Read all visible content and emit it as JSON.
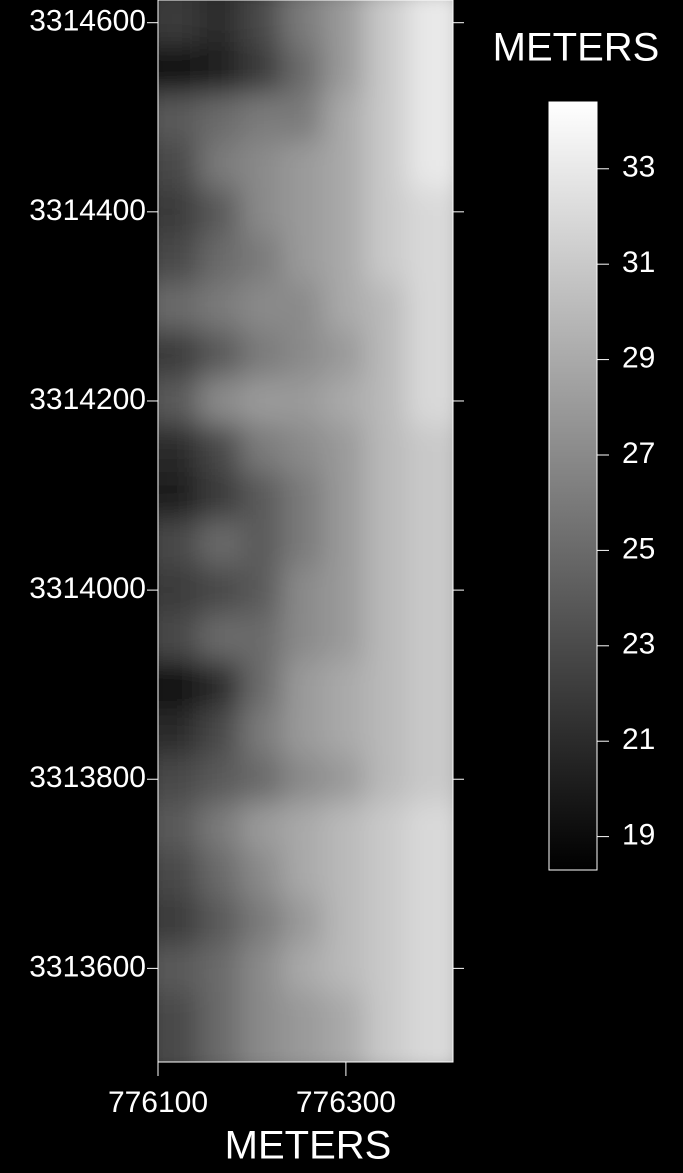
{
  "chart_data": {
    "type": "heatmap",
    "xlabel": "METERS",
    "colorbar_label": "METERS",
    "x": [
      776122,
      776166,
      776210,
      776254,
      776298,
      776342,
      776386
    ],
    "y": [
      3314600,
      3314550,
      3314500,
      3314450,
      3314400,
      3314350,
      3314300,
      3314250,
      3314200,
      3314150,
      3314100,
      3314050,
      3314000,
      3313950,
      3313900,
      3313850,
      3313800,
      3313750,
      3313700,
      3313650,
      3313600,
      3313550
    ],
    "z": [
      [
        22,
        21,
        23,
        26,
        28,
        31,
        33
      ],
      [
        19,
        20,
        22,
        25,
        28,
        31,
        33
      ],
      [
        24,
        25,
        26,
        26,
        29,
        31,
        33
      ],
      [
        23,
        26,
        27,
        28,
        29,
        31,
        33
      ],
      [
        22,
        24,
        27,
        28,
        29,
        31,
        32
      ],
      [
        23,
        25,
        26,
        28,
        29,
        31,
        32
      ],
      [
        25,
        26,
        27,
        27,
        29,
        30,
        32
      ],
      [
        22,
        24,
        26,
        27,
        28,
        30,
        32
      ],
      [
        24,
        27,
        28,
        28,
        29,
        30,
        32
      ],
      [
        21,
        23,
        26,
        27,
        28,
        30,
        31
      ],
      [
        20,
        22,
        24,
        26,
        28,
        30,
        31
      ],
      [
        23,
        25,
        24,
        26,
        28,
        30,
        31
      ],
      [
        22,
        23,
        24,
        27,
        28,
        30,
        31
      ],
      [
        23,
        25,
        25,
        27,
        28,
        30,
        31
      ],
      [
        19,
        21,
        25,
        28,
        29,
        30,
        31
      ],
      [
        21,
        23,
        26,
        28,
        29,
        30,
        31
      ],
      [
        23,
        24,
        25,
        27,
        28,
        30,
        31
      ],
      [
        24,
        26,
        28,
        29,
        30,
        31,
        32
      ],
      [
        23,
        25,
        27,
        29,
        30,
        31,
        32
      ],
      [
        22,
        24,
        26,
        28,
        30,
        31,
        32
      ],
      [
        24,
        25,
        27,
        29,
        30,
        31,
        32
      ],
      [
        23,
        25,
        27,
        28,
        29,
        31,
        32
      ]
    ],
    "xlim": [
      776100,
      776414
    ],
    "xticks": [
      776100,
      776300
    ],
    "ylim": [
      3313501,
      3314624
    ],
    "yticks": [
      3314600,
      3314400,
      3314200,
      3314000,
      3313800,
      3313600
    ],
    "colorbar_lim": [
      18.3,
      34.4
    ],
    "colorbar_ticks": [
      33,
      31,
      29,
      27,
      25,
      23,
      21,
      19
    ],
    "colormap": [
      "#000000",
      "#ffffff"
    ]
  }
}
